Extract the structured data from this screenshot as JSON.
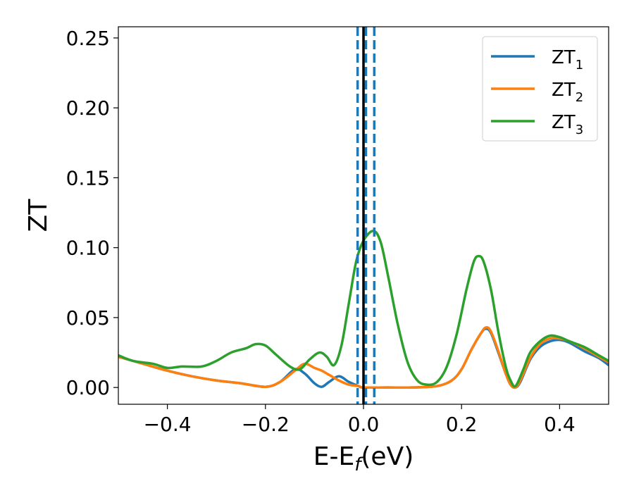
{
  "chart_data": {
    "type": "line",
    "xlabel": "E-E",
    "xlabel_sub": "f",
    "xlabel_unit": "(eV)",
    "ylabel": "ZT",
    "xlim": [
      -0.5,
      0.5
    ],
    "ylim": [
      -0.012,
      0.258
    ],
    "x_ticks": [
      -0.4,
      -0.2,
      0.0,
      0.2,
      0.4
    ],
    "x_tick_labels": [
      "−0.4",
      "−0.2",
      "0.0",
      "0.2",
      "0.4"
    ],
    "y_ticks": [
      0.0,
      0.05,
      0.1,
      0.15,
      0.2,
      0.25
    ],
    "y_tick_labels": [
      "0.00",
      "0.05",
      "0.10",
      "0.15",
      "0.20",
      "0.25"
    ],
    "grid": false,
    "legend_position": "top-right",
    "vertical_lines": [
      {
        "x": 0.0,
        "style": "solid",
        "color": "#000000"
      },
      {
        "x": -0.012,
        "style": "dashed",
        "color": "#1f77b4"
      },
      {
        "x": 0.005,
        "style": "dashed",
        "color": "#1f77b4"
      },
      {
        "x": 0.022,
        "style": "dashed",
        "color": "#1f77b4"
      }
    ],
    "series": [
      {
        "name": "ZT",
        "sub": "1",
        "color": "#1f77b4",
        "points": [
          [
            -0.5,
            0.022
          ],
          [
            -0.45,
            0.017
          ],
          [
            -0.4,
            0.012
          ],
          [
            -0.35,
            0.008
          ],
          [
            -0.3,
            0.005
          ],
          [
            -0.25,
            0.003
          ],
          [
            -0.2,
            0.0005
          ],
          [
            -0.17,
            0.004
          ],
          [
            -0.14,
            0.013
          ],
          [
            -0.12,
            0.01
          ],
          [
            -0.1,
            0.003
          ],
          [
            -0.085,
            0.0005
          ],
          [
            -0.07,
            0.004
          ],
          [
            -0.05,
            0.008
          ],
          [
            -0.03,
            0.004
          ],
          [
            -0.01,
            0.001
          ],
          [
            0.0,
            0.0
          ],
          [
            0.05,
            0.0
          ],
          [
            0.1,
            0.0
          ],
          [
            0.15,
            0.001
          ],
          [
            0.18,
            0.005
          ],
          [
            0.2,
            0.013
          ],
          [
            0.22,
            0.027
          ],
          [
            0.24,
            0.039
          ],
          [
            0.25,
            0.042
          ],
          [
            0.26,
            0.039
          ],
          [
            0.275,
            0.025
          ],
          [
            0.29,
            0.01
          ],
          [
            0.3,
            0.002
          ],
          [
            0.31,
            0.0
          ],
          [
            0.32,
            0.004
          ],
          [
            0.34,
            0.02
          ],
          [
            0.36,
            0.029
          ],
          [
            0.38,
            0.033
          ],
          [
            0.4,
            0.034
          ],
          [
            0.42,
            0.032
          ],
          [
            0.45,
            0.026
          ],
          [
            0.48,
            0.021
          ],
          [
            0.5,
            0.016
          ]
        ]
      },
      {
        "name": "ZT",
        "sub": "2",
        "color": "#ff7f0e",
        "points": [
          [
            -0.5,
            0.022
          ],
          [
            -0.45,
            0.017
          ],
          [
            -0.4,
            0.012
          ],
          [
            -0.35,
            0.008
          ],
          [
            -0.3,
            0.005
          ],
          [
            -0.25,
            0.003
          ],
          [
            -0.2,
            0.0005
          ],
          [
            -0.17,
            0.004
          ],
          [
            -0.14,
            0.012
          ],
          [
            -0.12,
            0.017
          ],
          [
            -0.1,
            0.014
          ],
          [
            -0.085,
            0.012
          ],
          [
            -0.07,
            0.009
          ],
          [
            -0.05,
            0.005
          ],
          [
            -0.03,
            0.002
          ],
          [
            -0.01,
            0.001
          ],
          [
            0.0,
            0.0
          ],
          [
            0.05,
            0.0
          ],
          [
            0.1,
            0.0
          ],
          [
            0.15,
            0.001
          ],
          [
            0.18,
            0.005
          ],
          [
            0.2,
            0.013
          ],
          [
            0.22,
            0.027
          ],
          [
            0.24,
            0.039
          ],
          [
            0.25,
            0.043
          ],
          [
            0.26,
            0.04
          ],
          [
            0.275,
            0.026
          ],
          [
            0.29,
            0.01
          ],
          [
            0.3,
            0.002
          ],
          [
            0.31,
            0.0
          ],
          [
            0.32,
            0.005
          ],
          [
            0.34,
            0.021
          ],
          [
            0.36,
            0.031
          ],
          [
            0.38,
            0.035
          ],
          [
            0.4,
            0.035
          ],
          [
            0.42,
            0.033
          ],
          [
            0.45,
            0.028
          ],
          [
            0.48,
            0.022
          ],
          [
            0.5,
            0.018
          ]
        ]
      },
      {
        "name": "ZT",
        "sub": "3",
        "color": "#2ca02c",
        "points": [
          [
            -0.5,
            0.023
          ],
          [
            -0.47,
            0.019
          ],
          [
            -0.43,
            0.017
          ],
          [
            -0.4,
            0.014
          ],
          [
            -0.37,
            0.015
          ],
          [
            -0.33,
            0.015
          ],
          [
            -0.3,
            0.019
          ],
          [
            -0.27,
            0.025
          ],
          [
            -0.24,
            0.028
          ],
          [
            -0.22,
            0.031
          ],
          [
            -0.2,
            0.03
          ],
          [
            -0.18,
            0.024
          ],
          [
            -0.15,
            0.015
          ],
          [
            -0.13,
            0.013
          ],
          [
            -0.11,
            0.02
          ],
          [
            -0.09,
            0.025
          ],
          [
            -0.075,
            0.022
          ],
          [
            -0.06,
            0.016
          ],
          [
            -0.045,
            0.03
          ],
          [
            -0.03,
            0.06
          ],
          [
            -0.015,
            0.09
          ],
          [
            0.0,
            0.105
          ],
          [
            0.02,
            0.112
          ],
          [
            0.035,
            0.104
          ],
          [
            0.05,
            0.08
          ],
          [
            0.07,
            0.045
          ],
          [
            0.09,
            0.018
          ],
          [
            0.11,
            0.005
          ],
          [
            0.13,
            0.002
          ],
          [
            0.15,
            0.004
          ],
          [
            0.17,
            0.015
          ],
          [
            0.19,
            0.038
          ],
          [
            0.21,
            0.07
          ],
          [
            0.225,
            0.09
          ],
          [
            0.235,
            0.094
          ],
          [
            0.245,
            0.09
          ],
          [
            0.26,
            0.07
          ],
          [
            0.275,
            0.04
          ],
          [
            0.29,
            0.015
          ],
          [
            0.3,
            0.005
          ],
          [
            0.31,
            0.001
          ],
          [
            0.325,
            0.012
          ],
          [
            0.34,
            0.025
          ],
          [
            0.36,
            0.033
          ],
          [
            0.38,
            0.037
          ],
          [
            0.4,
            0.036
          ],
          [
            0.42,
            0.033
          ],
          [
            0.45,
            0.029
          ],
          [
            0.48,
            0.023
          ],
          [
            0.5,
            0.019
          ]
        ]
      }
    ]
  }
}
